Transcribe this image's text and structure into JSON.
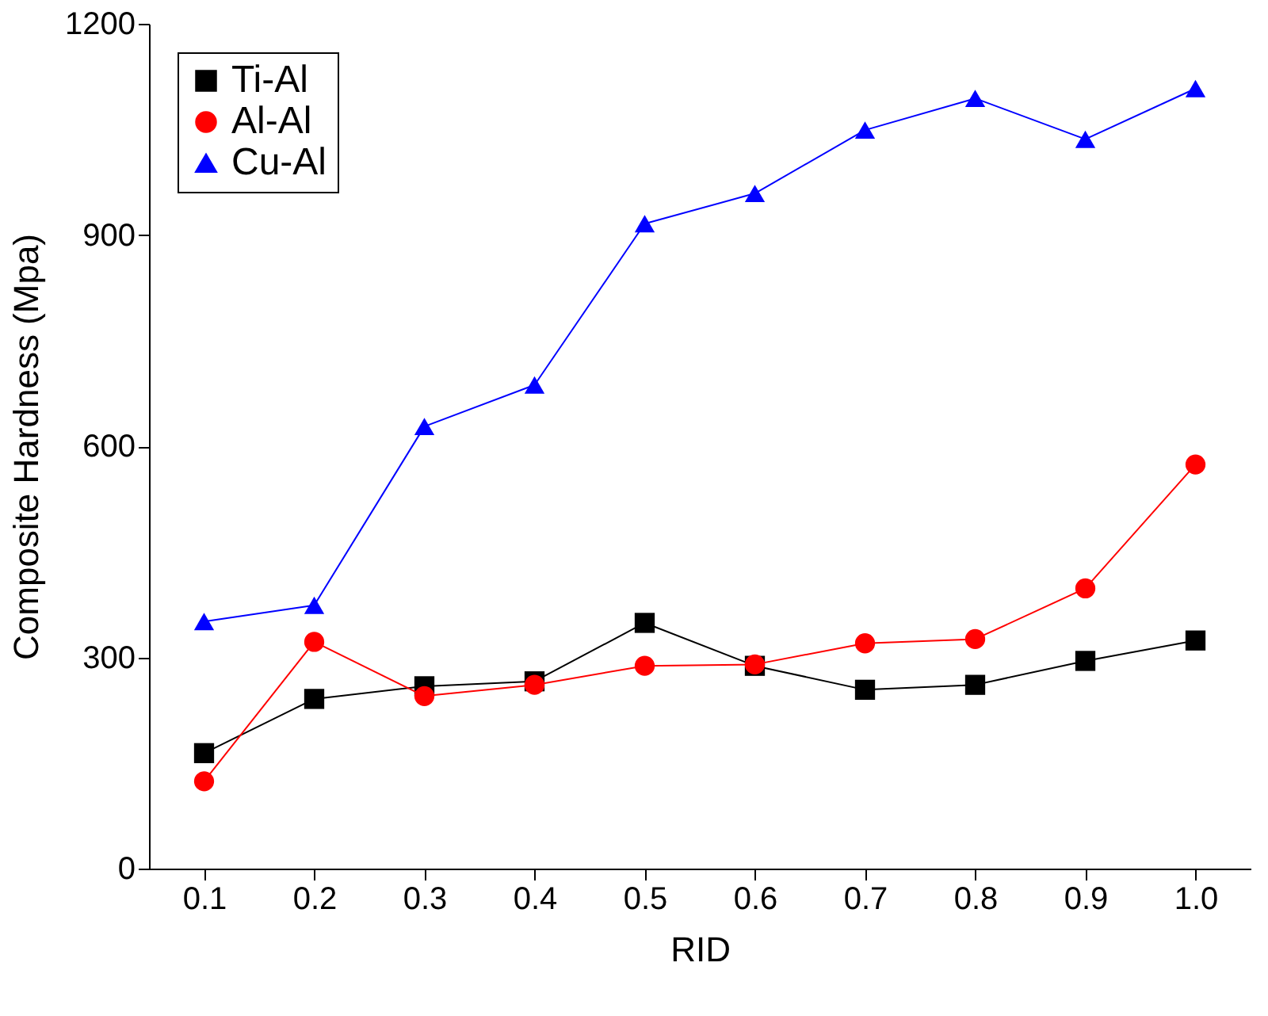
{
  "chart_data": {
    "type": "line",
    "xlabel": "RID",
    "ylabel": "Composite Hardness (Mpa)",
    "x": [
      0.1,
      0.2,
      0.3,
      0.4,
      0.5,
      0.6,
      0.7,
      0.8,
      0.9,
      1.0
    ],
    "series": [
      {
        "name": "Ti-Al",
        "color": "#000000",
        "marker": "square",
        "values": [
          164,
          241,
          259,
          266,
          349,
          288,
          254,
          261,
          295,
          324
        ]
      },
      {
        "name": "Al-Al",
        "color": "#ff0000",
        "marker": "circle",
        "values": [
          124,
          322,
          245,
          261,
          288,
          290,
          320,
          326,
          398,
          574
        ]
      },
      {
        "name": "Cu-Al",
        "color": "#0000ff",
        "marker": "triangle",
        "values": [
          351,
          374,
          628,
          687,
          916,
          959,
          1049,
          1094,
          1036,
          1108
        ]
      }
    ],
    "xlim": [
      0.05,
      1.05
    ],
    "xticks": [
      0.1,
      0.2,
      0.3,
      0.4,
      0.5,
      0.6,
      0.7,
      0.8,
      0.9,
      {
        "value": 1.0,
        "label": "1.0"
      }
    ],
    "ylim": [
      0,
      1200
    ],
    "yticks": [
      0,
      300,
      600,
      900,
      1200
    ],
    "grid": false,
    "legend": "top left",
    "line_style": "solid"
  }
}
